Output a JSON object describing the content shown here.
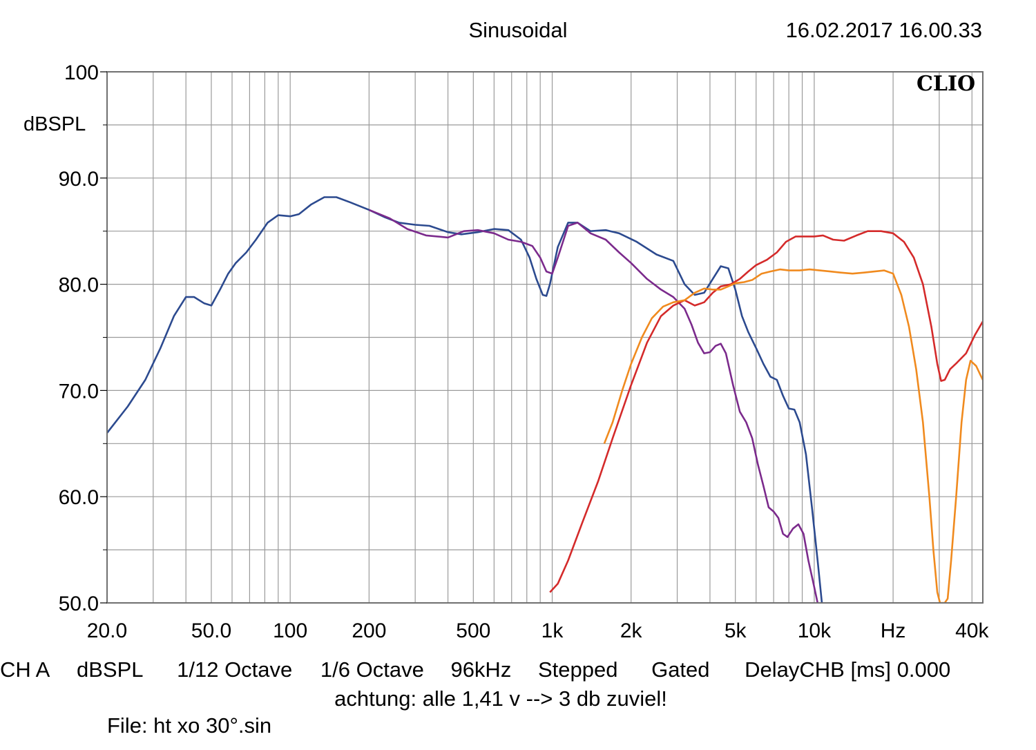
{
  "header": {
    "title": "Sinusoidal",
    "timestamp": "16.02.2017 16.00.33",
    "logo": "CLIO"
  },
  "footer": {
    "settings": [
      "CH A",
      "dBSPL",
      "1/12 Octave",
      "1/6 Octave",
      "96kHz",
      "Stepped",
      "Gated",
      "DelayCHB [ms] 0.000"
    ],
    "note": "achtung: alle 1,41 v --> 3 db zuviel!",
    "file": "File: ht xo 30°.sin"
  },
  "colors": {
    "grid": "#9a9a9a",
    "frame": "#6f6f6f",
    "series_blue": "#2c4a8f",
    "series_purple": "#7b2a8c",
    "series_red": "#d42a2a",
    "series_orange": "#f08a1e"
  },
  "chart_data": {
    "type": "line",
    "title": "",
    "xlabel": "",
    "ylabel": "dBSPL",
    "x_scale": "log",
    "xlim": [
      20,
      44000
    ],
    "ylim": [
      50,
      100
    ],
    "x_tick_labels": [
      {
        "value": 20,
        "label": "20.0"
      },
      {
        "value": 50,
        "label": "50.0"
      },
      {
        "value": 100,
        "label": "100"
      },
      {
        "value": 200,
        "label": "200"
      },
      {
        "value": 500,
        "label": "500"
      },
      {
        "value": 1000,
        "label": "1k"
      },
      {
        "value": 2000,
        "label": "2k"
      },
      {
        "value": 5000,
        "label": "5k"
      },
      {
        "value": 10000,
        "label": "10k"
      },
      {
        "value": 20000,
        "label": "Hz"
      },
      {
        "value": 40000,
        "label": "40k"
      }
    ],
    "y_tick_labels": [
      {
        "value": 100,
        "label": "100"
      },
      {
        "value": 90,
        "label": "90.0"
      },
      {
        "value": 80,
        "label": "80.0"
      },
      {
        "value": 70,
        "label": "70.0"
      },
      {
        "value": 60,
        "label": "60.0"
      },
      {
        "value": 50,
        "label": "50.0"
      }
    ],
    "grid": true,
    "series": [
      {
        "color": "#2c4a8f",
        "points": [
          [
            20,
            66
          ],
          [
            24,
            68.5
          ],
          [
            28,
            71
          ],
          [
            32,
            74
          ],
          [
            36,
            77
          ],
          [
            40,
            78.8
          ],
          [
            43,
            78.8
          ],
          [
            47,
            78.2
          ],
          [
            50,
            78
          ],
          [
            54,
            79.5
          ],
          [
            58,
            81
          ],
          [
            62,
            82
          ],
          [
            68,
            83
          ],
          [
            74,
            84.2
          ],
          [
            82,
            85.8
          ],
          [
            90,
            86.5
          ],
          [
            100,
            86.4
          ],
          [
            108,
            86.6
          ],
          [
            120,
            87.5
          ],
          [
            135,
            88.2
          ],
          [
            150,
            88.2
          ],
          [
            170,
            87.7
          ],
          [
            200,
            87
          ],
          [
            230,
            86.3
          ],
          [
            260,
            85.8
          ],
          [
            300,
            85.6
          ],
          [
            340,
            85.5
          ],
          [
            400,
            84.9
          ],
          [
            450,
            84.7
          ],
          [
            520,
            84.9
          ],
          [
            600,
            85.2
          ],
          [
            680,
            85.1
          ],
          [
            760,
            84.2
          ],
          [
            820,
            82.5
          ],
          [
            870,
            80.5
          ],
          [
            920,
            79
          ],
          [
            950,
            78.9
          ],
          [
            980,
            80
          ],
          [
            1050,
            83.5
          ],
          [
            1150,
            85.8
          ],
          [
            1250,
            85.8
          ],
          [
            1400,
            85
          ],
          [
            1600,
            85.1
          ],
          [
            1800,
            84.8
          ],
          [
            2100,
            84
          ],
          [
            2500,
            82.8
          ],
          [
            2900,
            82.2
          ],
          [
            3200,
            80
          ],
          [
            3500,
            79
          ],
          [
            3800,
            79.2
          ],
          [
            4100,
            80.5
          ],
          [
            4400,
            81.7
          ],
          [
            4700,
            81.5
          ],
          [
            5000,
            79.5
          ],
          [
            5300,
            77
          ],
          [
            5600,
            75.5
          ],
          [
            6000,
            74
          ],
          [
            6400,
            72.5
          ],
          [
            6800,
            71.3
          ],
          [
            7200,
            71
          ],
          [
            7600,
            69.5
          ],
          [
            8000,
            68.3
          ],
          [
            8400,
            68.2
          ],
          [
            8800,
            67
          ],
          [
            9300,
            64
          ],
          [
            9800,
            59
          ],
          [
            10300,
            54
          ],
          [
            10700,
            50
          ]
        ]
      },
      {
        "color": "#7b2a8c",
        "points": [
          [
            200,
            87
          ],
          [
            240,
            86.2
          ],
          [
            280,
            85.2
          ],
          [
            330,
            84.6
          ],
          [
            400,
            84.4
          ],
          [
            460,
            85
          ],
          [
            520,
            85.1
          ],
          [
            600,
            84.8
          ],
          [
            680,
            84.2
          ],
          [
            760,
            84
          ],
          [
            840,
            83.6
          ],
          [
            900,
            82.5
          ],
          [
            950,
            81.2
          ],
          [
            1000,
            81
          ],
          [
            1050,
            82.5
          ],
          [
            1150,
            85.5
          ],
          [
            1250,
            85.8
          ],
          [
            1400,
            84.8
          ],
          [
            1600,
            84.2
          ],
          [
            1800,
            83
          ],
          [
            2000,
            82
          ],
          [
            2300,
            80.5
          ],
          [
            2600,
            79.5
          ],
          [
            2900,
            78.8
          ],
          [
            3200,
            77.7
          ],
          [
            3400,
            76.2
          ],
          [
            3600,
            74.5
          ],
          [
            3800,
            73.5
          ],
          [
            4000,
            73.6
          ],
          [
            4200,
            74.2
          ],
          [
            4400,
            74.4
          ],
          [
            4600,
            73.5
          ],
          [
            4900,
            70.5
          ],
          [
            5200,
            68
          ],
          [
            5500,
            67
          ],
          [
            5800,
            65.5
          ],
          [
            6100,
            63
          ],
          [
            6400,
            61
          ],
          [
            6700,
            59
          ],
          [
            7000,
            58.6
          ],
          [
            7300,
            58
          ],
          [
            7600,
            56.5
          ],
          [
            7900,
            56.2
          ],
          [
            8300,
            57
          ],
          [
            8700,
            57.4
          ],
          [
            9100,
            56.5
          ],
          [
            9500,
            54
          ],
          [
            9900,
            52
          ],
          [
            10300,
            50
          ]
        ]
      },
      {
        "color": "#d42a2a",
        "points": [
          [
            980,
            51
          ],
          [
            1050,
            51.8
          ],
          [
            1150,
            54
          ],
          [
            1300,
            57.5
          ],
          [
            1500,
            61.5
          ],
          [
            1700,
            65.5
          ],
          [
            2000,
            70.5
          ],
          [
            2300,
            74.5
          ],
          [
            2600,
            77
          ],
          [
            2900,
            78
          ],
          [
            3200,
            78.5
          ],
          [
            3500,
            78
          ],
          [
            3800,
            78.3
          ],
          [
            4100,
            79.2
          ],
          [
            4400,
            79.8
          ],
          [
            4800,
            80
          ],
          [
            5200,
            80.5
          ],
          [
            5600,
            81.2
          ],
          [
            6000,
            81.8
          ],
          [
            6600,
            82.3
          ],
          [
            7200,
            83
          ],
          [
            7800,
            84
          ],
          [
            8500,
            84.5
          ],
          [
            9300,
            84.5
          ],
          [
            10000,
            84.5
          ],
          [
            10800,
            84.6
          ],
          [
            11800,
            84.2
          ],
          [
            13000,
            84.1
          ],
          [
            14500,
            84.6
          ],
          [
            16000,
            85
          ],
          [
            18000,
            85
          ],
          [
            20000,
            84.8
          ],
          [
            22000,
            84
          ],
          [
            24000,
            82.5
          ],
          [
            26000,
            80
          ],
          [
            28000,
            76
          ],
          [
            29500,
            72.5
          ],
          [
            30500,
            70.9
          ],
          [
            31500,
            71
          ],
          [
            33000,
            72
          ],
          [
            35000,
            72.6
          ],
          [
            38000,
            73.5
          ],
          [
            41000,
            75.2
          ],
          [
            44000,
            76.5
          ]
        ]
      },
      {
        "color": "#f08a1e",
        "points": [
          [
            1580,
            65
          ],
          [
            1700,
            67
          ],
          [
            1850,
            70
          ],
          [
            2000,
            72.5
          ],
          [
            2200,
            75
          ],
          [
            2400,
            76.8
          ],
          [
            2650,
            77.9
          ],
          [
            2900,
            78.3
          ],
          [
            3200,
            78.5
          ],
          [
            3500,
            79.2
          ],
          [
            3800,
            79.6
          ],
          [
            4100,
            79.5
          ],
          [
            4400,
            79.5
          ],
          [
            4700,
            79.8
          ],
          [
            5000,
            80.1
          ],
          [
            5400,
            80.2
          ],
          [
            5800,
            80.4
          ],
          [
            6300,
            81
          ],
          [
            6800,
            81.2
          ],
          [
            7400,
            81.4
          ],
          [
            8000,
            81.3
          ],
          [
            8800,
            81.3
          ],
          [
            9600,
            81.4
          ],
          [
            10500,
            81.3
          ],
          [
            11500,
            81.2
          ],
          [
            12600,
            81.1
          ],
          [
            14000,
            81
          ],
          [
            15500,
            81.1
          ],
          [
            17000,
            81.2
          ],
          [
            18500,
            81.3
          ],
          [
            20000,
            81
          ],
          [
            21500,
            79
          ],
          [
            23000,
            76
          ],
          [
            24500,
            72
          ],
          [
            26000,
            67
          ],
          [
            27500,
            60
          ],
          [
            28500,
            55
          ],
          [
            29500,
            51
          ],
          [
            30200,
            50
          ],
          [
            31500,
            50
          ],
          [
            32300,
            50.4
          ],
          [
            33300,
            54
          ],
          [
            34800,
            60
          ],
          [
            36500,
            67
          ],
          [
            38000,
            71
          ],
          [
            39500,
            72.8
          ],
          [
            41500,
            72.3
          ],
          [
            43000,
            71.5
          ],
          [
            44000,
            71
          ]
        ]
      }
    ]
  }
}
